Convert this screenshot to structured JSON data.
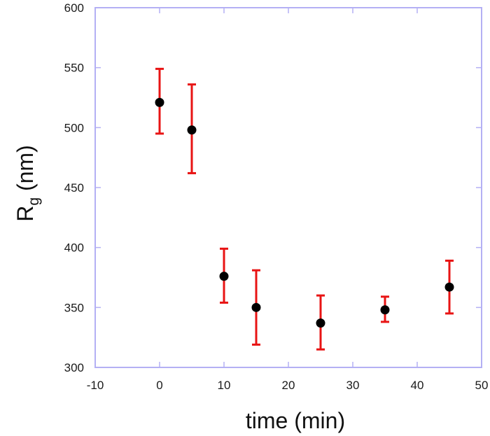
{
  "chart_data": {
    "type": "scatter",
    "title": "",
    "xlabel": "time (min)",
    "ylabel": "R",
    "ylabel_subscript": "g",
    "ylabel_unit": " (nm)",
    "xlim": [
      -10,
      50
    ],
    "ylim": [
      300,
      600
    ],
    "xticks": [
      -10,
      0,
      10,
      20,
      30,
      40,
      50
    ],
    "yticks": [
      300,
      350,
      400,
      450,
      500,
      550,
      600
    ],
    "grid": false,
    "legend": null,
    "series": [
      {
        "name": "Rg",
        "marker": "filled-circle",
        "marker_color": "#000000",
        "errorbar_color": "#e81414",
        "x": [
          0,
          5,
          10,
          15,
          25,
          35,
          45
        ],
        "y": [
          521,
          498,
          376,
          350,
          337,
          348,
          367
        ],
        "error_upper": [
          549,
          536,
          399,
          381,
          360,
          359,
          389
        ],
        "error_lower": [
          495,
          462,
          354,
          319,
          315,
          338,
          345
        ]
      }
    ]
  },
  "style": {
    "axis_color": "#b4b0f4",
    "background": "#ffffff"
  }
}
